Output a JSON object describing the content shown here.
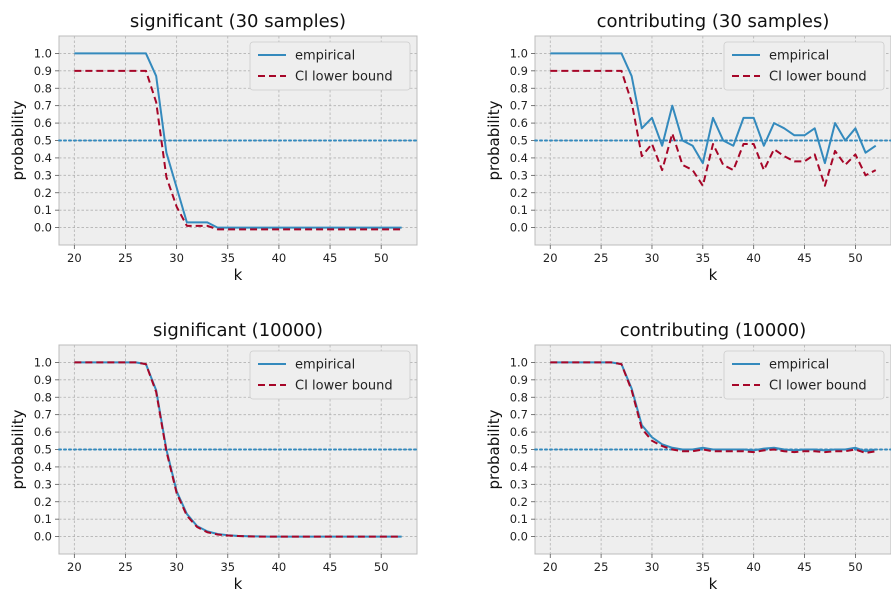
{
  "chart_data": [
    {
      "type": "line",
      "title": "significant (30 samples)",
      "xlabel": "k",
      "ylabel": "probability",
      "xlim": [
        18.5,
        53.5
      ],
      "ylim": [
        -0.1,
        1.1
      ],
      "xticks": [
        20,
        25,
        30,
        35,
        40,
        45,
        50
      ],
      "yticks": [
        0.0,
        0.1,
        0.2,
        0.3,
        0.4,
        0.5,
        0.6,
        0.7,
        0.8,
        0.9,
        1.0
      ],
      "grid": true,
      "legend_position": "top-right",
      "reference_line": {
        "y": 0.5,
        "style": "dotted",
        "color": "#348ABD"
      },
      "x": [
        20,
        21,
        22,
        23,
        24,
        25,
        26,
        27,
        28,
        29,
        30,
        31,
        32,
        33,
        34,
        35,
        36,
        37,
        38,
        39,
        40,
        41,
        42,
        43,
        44,
        45,
        46,
        47,
        48,
        49,
        50,
        51,
        52
      ],
      "series": [
        {
          "name": "empirical",
          "color": "#348ABD",
          "style": "solid",
          "values": [
            1.0,
            1.0,
            1.0,
            1.0,
            1.0,
            1.0,
            1.0,
            1.0,
            0.87,
            0.43,
            0.23,
            0.03,
            0.03,
            0.03,
            0.0,
            0.0,
            0.0,
            0.0,
            0.0,
            0.0,
            0.0,
            0.0,
            0.0,
            0.0,
            0.0,
            0.0,
            0.0,
            0.0,
            0.0,
            0.0,
            0.0,
            0.0,
            0.0
          ]
        },
        {
          "name": "CI lower bound",
          "color": "#A60628",
          "style": "dashed",
          "values": [
            0.9,
            0.9,
            0.9,
            0.9,
            0.9,
            0.9,
            0.9,
            0.9,
            0.72,
            0.29,
            0.12,
            0.01,
            0.01,
            0.01,
            -0.01,
            -0.01,
            -0.01,
            -0.01,
            -0.01,
            -0.01,
            -0.01,
            -0.01,
            -0.01,
            -0.01,
            -0.01,
            -0.01,
            -0.01,
            -0.01,
            -0.01,
            -0.01,
            -0.01,
            -0.01,
            -0.01
          ]
        }
      ]
    },
    {
      "type": "line",
      "title": "contributing (30 samples)",
      "xlabel": "k",
      "ylabel": "probability",
      "xlim": [
        18.5,
        53.5
      ],
      "ylim": [
        -0.1,
        1.1
      ],
      "xticks": [
        20,
        25,
        30,
        35,
        40,
        45,
        50
      ],
      "yticks": [
        0.0,
        0.1,
        0.2,
        0.3,
        0.4,
        0.5,
        0.6,
        0.7,
        0.8,
        0.9,
        1.0
      ],
      "grid": true,
      "legend_position": "top-right",
      "reference_line": {
        "y": 0.5,
        "style": "dotted",
        "color": "#348ABD"
      },
      "x": [
        20,
        21,
        22,
        23,
        24,
        25,
        26,
        27,
        28,
        29,
        30,
        31,
        32,
        33,
        34,
        35,
        36,
        37,
        38,
        39,
        40,
        41,
        42,
        43,
        44,
        45,
        46,
        47,
        48,
        49,
        50,
        51,
        52
      ],
      "series": [
        {
          "name": "empirical",
          "color": "#348ABD",
          "style": "solid",
          "values": [
            1.0,
            1.0,
            1.0,
            1.0,
            1.0,
            1.0,
            1.0,
            1.0,
            0.87,
            0.57,
            0.63,
            0.47,
            0.7,
            0.5,
            0.47,
            0.37,
            0.63,
            0.5,
            0.47,
            0.63,
            0.63,
            0.47,
            0.6,
            0.57,
            0.53,
            0.53,
            0.57,
            0.37,
            0.6,
            0.5,
            0.57,
            0.43,
            0.47
          ]
        },
        {
          "name": "CI lower bound",
          "color": "#A60628",
          "style": "dashed",
          "values": [
            0.9,
            0.9,
            0.9,
            0.9,
            0.9,
            0.9,
            0.9,
            0.9,
            0.72,
            0.41,
            0.48,
            0.33,
            0.54,
            0.36,
            0.33,
            0.24,
            0.48,
            0.36,
            0.33,
            0.48,
            0.48,
            0.33,
            0.45,
            0.41,
            0.38,
            0.38,
            0.42,
            0.24,
            0.44,
            0.36,
            0.42,
            0.3,
            0.33
          ]
        }
      ]
    },
    {
      "type": "line",
      "title": "significant (10000)",
      "xlabel": "k",
      "ylabel": "probability",
      "xlim": [
        18.5,
        53.5
      ],
      "ylim": [
        -0.1,
        1.1
      ],
      "xticks": [
        20,
        25,
        30,
        35,
        40,
        45,
        50
      ],
      "yticks": [
        0.0,
        0.1,
        0.2,
        0.3,
        0.4,
        0.5,
        0.6,
        0.7,
        0.8,
        0.9,
        1.0
      ],
      "grid": true,
      "legend_position": "top-right",
      "reference_line": {
        "y": 0.5,
        "style": "dotted",
        "color": "#348ABD"
      },
      "x": [
        20,
        21,
        22,
        23,
        24,
        25,
        26,
        27,
        28,
        29,
        30,
        31,
        32,
        33,
        34,
        35,
        36,
        37,
        38,
        39,
        40,
        41,
        42,
        43,
        44,
        45,
        46,
        47,
        48,
        49,
        50,
        51,
        52
      ],
      "series": [
        {
          "name": "empirical",
          "color": "#348ABD",
          "style": "solid",
          "values": [
            1.0,
            1.0,
            1.0,
            1.0,
            1.0,
            1.0,
            1.0,
            0.99,
            0.84,
            0.5,
            0.26,
            0.13,
            0.06,
            0.03,
            0.015,
            0.008,
            0.004,
            0.002,
            0.001,
            0.0,
            0.0,
            0.0,
            0.0,
            0.0,
            0.0,
            0.0,
            0.0,
            0.0,
            0.0,
            0.0,
            0.0,
            0.0,
            0.0
          ]
        },
        {
          "name": "CI lower bound",
          "color": "#A60628",
          "style": "dashed",
          "values": [
            1.0,
            1.0,
            1.0,
            1.0,
            1.0,
            1.0,
            1.0,
            0.99,
            0.83,
            0.49,
            0.25,
            0.12,
            0.055,
            0.025,
            0.012,
            0.006,
            0.003,
            0.001,
            0.0,
            0.0,
            0.0,
            0.0,
            0.0,
            0.0,
            0.0,
            0.0,
            0.0,
            0.0,
            0.0,
            0.0,
            0.0,
            0.0,
            0.0
          ]
        }
      ]
    },
    {
      "type": "line",
      "title": "contributing (10000)",
      "xlabel": "k",
      "ylabel": "probability",
      "xlim": [
        18.5,
        53.5
      ],
      "ylim": [
        -0.1,
        1.1
      ],
      "xticks": [
        20,
        25,
        30,
        35,
        40,
        45,
        50
      ],
      "yticks": [
        0.0,
        0.1,
        0.2,
        0.3,
        0.4,
        0.5,
        0.6,
        0.7,
        0.8,
        0.9,
        1.0
      ],
      "grid": true,
      "legend_position": "top-right",
      "reference_line": {
        "y": 0.5,
        "style": "dotted",
        "color": "#348ABD"
      },
      "x": [
        20,
        21,
        22,
        23,
        24,
        25,
        26,
        27,
        28,
        29,
        30,
        31,
        32,
        33,
        34,
        35,
        36,
        37,
        38,
        39,
        40,
        41,
        42,
        43,
        44,
        45,
        46,
        47,
        48,
        49,
        50,
        51,
        52
      ],
      "series": [
        {
          "name": "empirical",
          "color": "#348ABD",
          "style": "solid",
          "values": [
            1.0,
            1.0,
            1.0,
            1.0,
            1.0,
            1.0,
            1.0,
            0.99,
            0.85,
            0.64,
            0.57,
            0.53,
            0.51,
            0.5,
            0.5,
            0.51,
            0.5,
            0.5,
            0.5,
            0.5,
            0.495,
            0.505,
            0.51,
            0.5,
            0.495,
            0.5,
            0.5,
            0.495,
            0.5,
            0.5,
            0.51,
            0.49,
            0.5
          ]
        },
        {
          "name": "CI lower bound",
          "color": "#A60628",
          "style": "dashed",
          "values": [
            1.0,
            1.0,
            1.0,
            1.0,
            1.0,
            1.0,
            1.0,
            0.99,
            0.84,
            0.62,
            0.55,
            0.52,
            0.5,
            0.49,
            0.49,
            0.5,
            0.49,
            0.49,
            0.49,
            0.49,
            0.485,
            0.495,
            0.5,
            0.49,
            0.485,
            0.49,
            0.49,
            0.485,
            0.49,
            0.49,
            0.5,
            0.48,
            0.49
          ]
        }
      ]
    }
  ]
}
